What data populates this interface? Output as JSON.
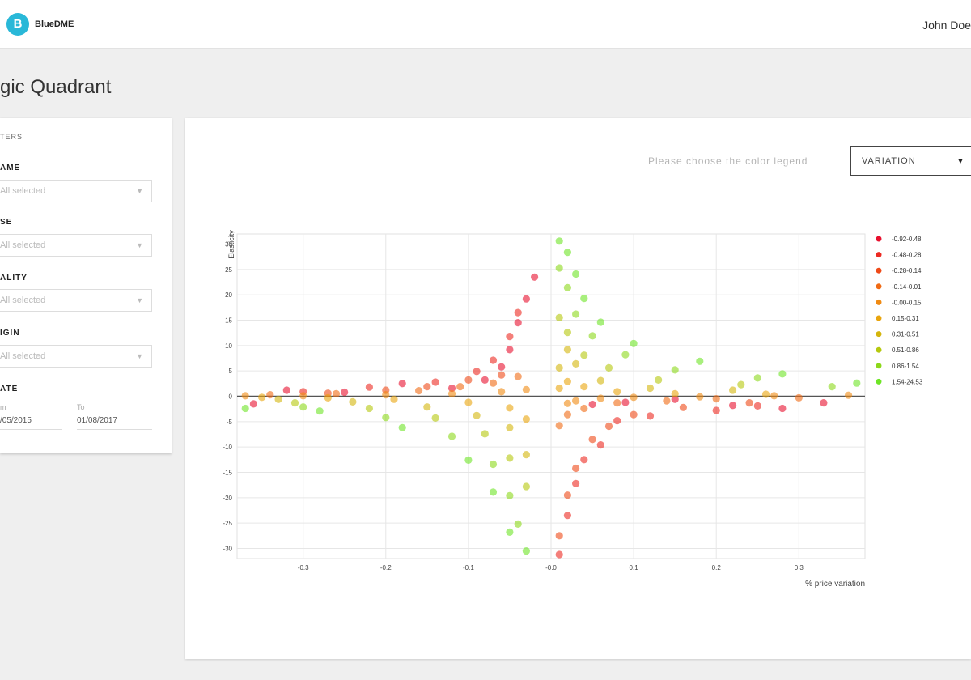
{
  "header": {
    "logo_letter": "B",
    "brand": "BlueDME",
    "user": "John Doe"
  },
  "page": {
    "title": "gic Quadrant"
  },
  "filters": {
    "title": "TERS",
    "groups": [
      {
        "label": "AME",
        "value": "All selected"
      },
      {
        "label": "SE",
        "value": "All selected"
      },
      {
        "label": "ALITY",
        "value": "All selected"
      },
      {
        "label": "IGIN",
        "value": "All selected"
      }
    ],
    "date": {
      "label": "ATE",
      "from_label": "m",
      "from_value": "/05/2015",
      "to_label": "To",
      "to_value": "01/08/2017"
    }
  },
  "legend_control": {
    "prompt": "Please choose the color legend",
    "selected": "VARIATION"
  },
  "chart_data": {
    "type": "scatter",
    "xlabel": "% price variation",
    "ylabel": "Elasticity",
    "xlim": [
      -0.38,
      0.38
    ],
    "ylim": [
      -32,
      32
    ],
    "xticks": [
      "-0.3",
      "-0.2",
      "-0.1",
      "-0.0",
      "0.1",
      "0.2",
      "0.3"
    ],
    "xtick_values": [
      -0.3,
      -0.2,
      -0.1,
      0,
      0.1,
      0.2,
      0.3
    ],
    "yticks": [
      "30",
      "25",
      "20",
      "15",
      "10",
      "5",
      "0",
      "-5",
      "-10",
      "-15",
      "-20",
      "-25",
      "-30"
    ],
    "ytick_values": [
      30,
      25,
      20,
      15,
      10,
      5,
      0,
      -5,
      -10,
      -15,
      -20,
      -25,
      -30
    ],
    "grid": true,
    "legend_position": "right",
    "colors": [
      "#e8102e",
      "#ec2a22",
      "#ef4a18",
      "#f06a14",
      "#f08a12",
      "#e9a50e",
      "#d4b50c",
      "#b5c80e",
      "#8cd81a",
      "#6ee526"
    ],
    "series": [
      {
        "name": "-0.92-0.48",
        "values": [
          [
            -0.36,
            -1.5
          ],
          [
            -0.32,
            1.2
          ],
          [
            -0.25,
            0.8
          ],
          [
            -0.18,
            2.5
          ],
          [
            -0.12,
            1.6
          ],
          [
            -0.08,
            3.2
          ],
          [
            -0.06,
            5.8
          ],
          [
            -0.05,
            9.2
          ],
          [
            -0.04,
            14.5
          ],
          [
            -0.03,
            19.2
          ],
          [
            -0.02,
            23.5
          ],
          [
            0.05,
            -1.6
          ],
          [
            0.09,
            -1.2
          ],
          [
            0.15,
            -0.6
          ],
          [
            0.22,
            -1.8
          ],
          [
            0.28,
            -2.4
          ],
          [
            0.33,
            -1.3
          ]
        ]
      },
      {
        "name": "-0.48-0.28",
        "values": [
          [
            -0.3,
            0.9
          ],
          [
            -0.22,
            1.8
          ],
          [
            -0.14,
            2.8
          ],
          [
            -0.09,
            4.9
          ],
          [
            -0.07,
            7.1
          ],
          [
            -0.05,
            11.8
          ],
          [
            -0.04,
            16.5
          ],
          [
            0.01,
            -31.2
          ],
          [
            0.02,
            -23.5
          ],
          [
            0.03,
            -17.2
          ],
          [
            0.04,
            -12.5
          ],
          [
            0.06,
            -9.6
          ],
          [
            0.08,
            -4.8
          ],
          [
            0.12,
            -3.9
          ],
          [
            0.2,
            -2.8
          ],
          [
            0.25,
            -1.9
          ]
        ]
      },
      {
        "name": "-0.28-0.14",
        "values": [
          [
            -0.27,
            0.6
          ],
          [
            -0.2,
            1.2
          ],
          [
            -0.15,
            1.9
          ],
          [
            -0.1,
            3.2
          ],
          [
            -0.06,
            4.2
          ],
          [
            0.01,
            -27.5
          ],
          [
            0.02,
            -19.5
          ],
          [
            0.03,
            -14.2
          ],
          [
            0.05,
            -8.5
          ],
          [
            0.07,
            -5.9
          ],
          [
            0.1,
            -3.6
          ],
          [
            0.16,
            -2.2
          ],
          [
            0.24,
            -1.3
          ]
        ]
      },
      {
        "name": "-0.14-0.01",
        "values": [
          [
            -0.34,
            0.3
          ],
          [
            -0.26,
            0.5
          ],
          [
            -0.16,
            1.1
          ],
          [
            -0.11,
            1.9
          ],
          [
            -0.07,
            2.6
          ],
          [
            -0.04,
            3.9
          ],
          [
            0.01,
            -5.8
          ],
          [
            0.02,
            -3.6
          ],
          [
            0.04,
            -2.4
          ],
          [
            0.08,
            -1.3
          ],
          [
            0.14,
            -0.9
          ],
          [
            0.2,
            -0.5
          ],
          [
            0.3,
            -0.3
          ]
        ]
      },
      {
        "name": "-0.00-0.15",
        "values": [
          [
            -0.37,
            0.1
          ],
          [
            -0.3,
            0.1
          ],
          [
            -0.2,
            0.3
          ],
          [
            -0.12,
            0.5
          ],
          [
            -0.06,
            0.9
          ],
          [
            -0.03,
            1.3
          ],
          [
            0.02,
            -1.4
          ],
          [
            0.03,
            -0.9
          ],
          [
            0.06,
            -0.4
          ],
          [
            0.1,
            -0.2
          ],
          [
            0.18,
            -0.1
          ],
          [
            0.27,
            0.1
          ],
          [
            0.36,
            0.2
          ]
        ]
      },
      {
        "name": "0.15-0.31",
        "values": [
          [
            -0.35,
            -0.2
          ],
          [
            -0.27,
            -0.3
          ],
          [
            -0.19,
            -0.6
          ],
          [
            -0.1,
            -1.2
          ],
          [
            -0.05,
            -2.3
          ],
          [
            -0.03,
            -4.5
          ],
          [
            0.01,
            1.6
          ],
          [
            0.02,
            2.9
          ],
          [
            0.04,
            1.9
          ],
          [
            0.08,
            0.9
          ],
          [
            0.15,
            0.5
          ],
          [
            0.26,
            0.4
          ]
        ]
      },
      {
        "name": "0.31-0.51",
        "values": [
          [
            -0.33,
            -0.6
          ],
          [
            -0.24,
            -1.1
          ],
          [
            -0.15,
            -2.1
          ],
          [
            -0.09,
            -3.8
          ],
          [
            -0.05,
            -6.2
          ],
          [
            -0.03,
            -11.5
          ],
          [
            0.01,
            5.6
          ],
          [
            0.02,
            9.2
          ],
          [
            0.03,
            6.4
          ],
          [
            0.06,
            3.1
          ],
          [
            0.12,
            1.6
          ],
          [
            0.22,
            1.2
          ]
        ]
      },
      {
        "name": "0.51-0.86",
        "values": [
          [
            -0.31,
            -1.3
          ],
          [
            -0.22,
            -2.4
          ],
          [
            -0.14,
            -4.3
          ],
          [
            -0.08,
            -7.4
          ],
          [
            -0.05,
            -12.2
          ],
          [
            -0.03,
            -17.8
          ],
          [
            0.01,
            15.5
          ],
          [
            0.02,
            12.6
          ],
          [
            0.04,
            8.1
          ],
          [
            0.07,
            5.6
          ],
          [
            0.13,
            3.2
          ],
          [
            0.23,
            2.3
          ]
        ]
      },
      {
        "name": "0.86-1.54",
        "values": [
          [
            -0.3,
            -2.1
          ],
          [
            -0.2,
            -4.2
          ],
          [
            -0.12,
            -7.9
          ],
          [
            -0.07,
            -13.4
          ],
          [
            -0.05,
            -19.6
          ],
          [
            -0.04,
            -25.2
          ],
          [
            0.01,
            25.3
          ],
          [
            0.02,
            21.4
          ],
          [
            0.03,
            16.2
          ],
          [
            0.05,
            11.9
          ],
          [
            0.09,
            8.2
          ],
          [
            0.15,
            5.2
          ],
          [
            0.25,
            3.6
          ],
          [
            0.34,
            1.9
          ]
        ]
      },
      {
        "name": "1.54-24.53",
        "values": [
          [
            -0.37,
            -2.4
          ],
          [
            -0.28,
            -2.9
          ],
          [
            -0.18,
            -6.2
          ],
          [
            -0.1,
            -12.6
          ],
          [
            -0.07,
            -18.9
          ],
          [
            -0.05,
            -26.8
          ],
          [
            -0.03,
            -30.5
          ],
          [
            0.01,
            30.6
          ],
          [
            0.02,
            28.4
          ],
          [
            0.03,
            24.1
          ],
          [
            0.04,
            19.3
          ],
          [
            0.06,
            14.6
          ],
          [
            0.1,
            10.4
          ],
          [
            0.18,
            6.9
          ],
          [
            0.28,
            4.4
          ],
          [
            0.37,
            2.6
          ]
        ]
      }
    ]
  }
}
